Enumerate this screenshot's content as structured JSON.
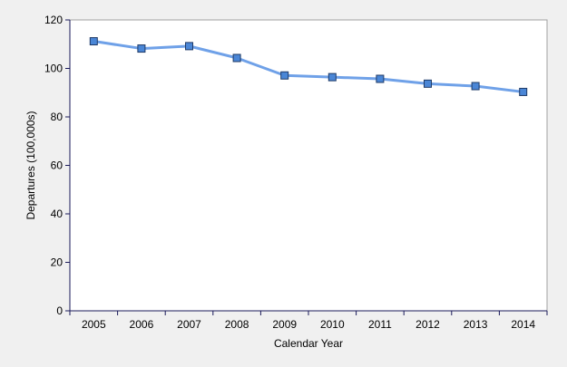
{
  "chart_data": {
    "type": "line",
    "title": "",
    "xlabel": "Calendar Year",
    "ylabel": "Departures (100,000s)",
    "categories": [
      "2005",
      "2006",
      "2007",
      "2008",
      "2009",
      "2010",
      "2011",
      "2012",
      "2013",
      "2014"
    ],
    "series": [
      {
        "values": [
          111.2,
          108.2,
          109.2,
          104.3,
          97.1,
          96.4,
          95.7,
          93.7,
          92.7,
          90.3
        ],
        "color": "#6fa1e8",
        "marker_fill": "#4a86d6",
        "marker_stroke": "#1f3a66"
      }
    ],
    "ylim": [
      0,
      120
    ],
    "yticks": [
      "0",
      "20",
      "40",
      "60",
      "80",
      "100",
      "120"
    ],
    "grid": false,
    "legend": "none",
    "colors": {
      "background": "#f0f0f0",
      "plot_background": "#ffffff",
      "axis": "#1a1a5a",
      "plot_border": "#a0a0a0"
    }
  }
}
